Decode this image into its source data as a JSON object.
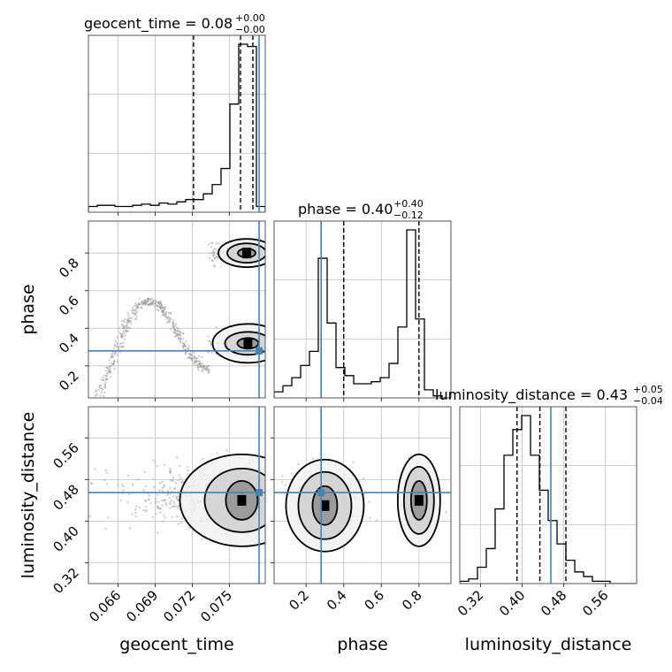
{
  "chart_data": {
    "type": "corner",
    "parameters": [
      "geocent_time",
      "phase",
      "luminosity_distance"
    ],
    "grid": true,
    "titles": [
      {
        "param": "geocent_time",
        "text": "geocent_time = 0.08",
        "plus": "+0.00",
        "minus": "−0.00"
      },
      {
        "param": "phase",
        "text": "phase = 0.40",
        "plus": "+0.40",
        "minus": "−0.12"
      },
      {
        "param": "luminosity_distance",
        "text": "luminosity_distance = 0.43",
        "plus": "+0.05",
        "minus": "−0.04"
      }
    ],
    "axes": {
      "geocent_time": {
        "range": [
          0.0636,
          0.0779
        ],
        "ticks": [
          "0.066",
          "0.069",
          "0.072",
          "0.075"
        ],
        "tick_values": [
          0.066,
          0.069,
          0.072,
          0.075
        ]
      },
      "phase": {
        "range": [
          0.03,
          0.97
        ],
        "ticks": [
          "0.2",
          "0.4",
          "0.6",
          "0.8"
        ],
        "tick_values": [
          0.2,
          0.4,
          0.6,
          0.8
        ]
      },
      "luminosity_distance": {
        "range": [
          0.28,
          0.62
        ],
        "ticks": [
          "0.32",
          "0.40",
          "0.48",
          "0.56"
        ],
        "tick_values": [
          0.32,
          0.4,
          0.48,
          0.56
        ]
      }
    },
    "truths": {
      "geocent_time": 0.0774,
      "phase": 0.28,
      "luminosity_distance": 0.455
    },
    "quantiles": {
      "geocent_time": [
        0.0721,
        0.0759,
        0.0769
      ],
      "phase": [
        0.28,
        0.4,
        0.8
      ],
      "luminosity_distance": [
        0.39,
        0.434,
        0.484
      ]
    },
    "histograms": {
      "geocent_time": {
        "edges_range": [
          0.0636,
          0.0779
        ],
        "bins": 20,
        "counts": [
          5,
          6,
          6,
          5,
          5,
          6,
          7,
          6,
          8,
          7,
          9,
          11,
          11,
          16,
          24,
          38,
          94,
          146,
          144,
          5
        ]
      },
      "phase": {
        "edges_range": [
          0.03,
          0.97
        ],
        "bins": 20,
        "counts": [
          3,
          6,
          10,
          16,
          23,
          69,
          37,
          15,
          11,
          7,
          7,
          8,
          10,
          17,
          35,
          83,
          39,
          4,
          1,
          0
        ]
      },
      "luminosity_distance": {
        "edges_range": [
          0.28,
          0.62
        ],
        "bins": 20,
        "counts": [
          1,
          2,
          7,
          15,
          32,
          55,
          66,
          72,
          55,
          40,
          27,
          17,
          10,
          5,
          3,
          1,
          1,
          0,
          0,
          0
        ]
      }
    },
    "contours_2d": [
      {
        "x": "geocent_time",
        "y": "phase",
        "description": "bimodal in phase near 0.3 and 0.8 at geocent_time ≈ 0.0765, S-shaped tail toward earlier times"
      },
      {
        "x": "geocent_time",
        "y": "luminosity_distance",
        "peak": [
          0.0764,
          0.44
        ]
      },
      {
        "x": "phase",
        "y": "luminosity_distance",
        "peaks": [
          [
            0.3,
            0.43
          ],
          [
            0.8,
            0.44
          ]
        ]
      }
    ],
    "colors": {
      "truth": "#4682b4",
      "hist": "#000000",
      "grid": "#c0c0c0",
      "scatter": "#9a9a9a"
    }
  }
}
